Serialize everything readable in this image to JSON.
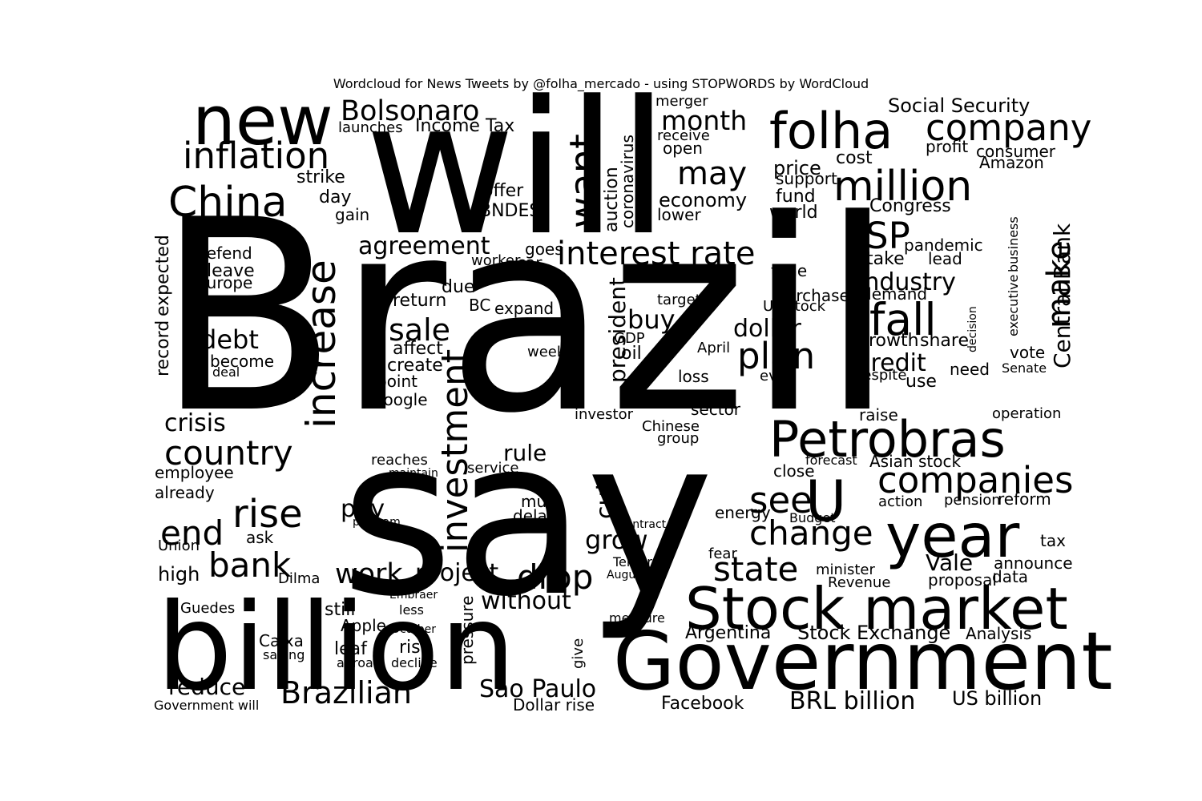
{
  "title": "Wordcloud for News Tweets by @folha_mercado - using STOPWORDS by WordCloud",
  "chart_data": {
    "type": "wordcloud",
    "title": "Wordcloud for News Tweets by @folha_mercado - using STOPWORDS by WordCloud",
    "colors": {
      "background": "#ffffff",
      "text": "#000000"
    },
    "words": [
      {
        "text": "Brazil",
        "weight": 1.0
      },
      {
        "text": "say",
        "weight": 0.82
      },
      {
        "text": "will",
        "weight": 0.7
      },
      {
        "text": "billion",
        "weight": 0.42
      },
      {
        "text": "Government",
        "weight": 0.34
      },
      {
        "text": "Stock market",
        "weight": 0.27
      },
      {
        "text": "new",
        "weight": 0.32
      },
      {
        "text": "year",
        "weight": 0.29
      },
      {
        "text": "folha",
        "weight": 0.23
      },
      {
        "text": "Petrobras",
        "weight": 0.24
      },
      {
        "text": "million",
        "weight": 0.2
      },
      {
        "text": "companies",
        "weight": 0.18
      },
      {
        "text": "company",
        "weight": 0.18
      },
      {
        "text": "China",
        "weight": 0.18
      },
      {
        "text": "increase",
        "weight": 0.17
      },
      {
        "text": "investment",
        "weight": 0.17
      },
      {
        "text": "want",
        "weight": 0.17
      },
      {
        "text": "see",
        "weight": 0.17
      },
      {
        "text": "U",
        "weight": 0.18
      },
      {
        "text": "inflation",
        "weight": 0.15
      },
      {
        "text": "Bolsonaro",
        "weight": 0.14
      },
      {
        "text": "interest rate",
        "weight": 0.15
      },
      {
        "text": "fall",
        "weight": 0.17
      },
      {
        "text": "make",
        "weight": 0.17
      },
      {
        "text": "plan",
        "weight": 0.15
      },
      {
        "text": "SP",
        "weight": 0.15
      },
      {
        "text": "may",
        "weight": 0.14
      },
      {
        "text": "month",
        "weight": 0.13
      },
      {
        "text": "sale",
        "weight": 0.13
      },
      {
        "text": "rise",
        "weight": 0.16
      },
      {
        "text": "end",
        "weight": 0.15
      },
      {
        "text": "bank",
        "weight": 0.15
      },
      {
        "text": "country",
        "weight": 0.15
      },
      {
        "text": "Brazilian",
        "weight": 0.15
      },
      {
        "text": "drop",
        "weight": 0.15
      },
      {
        "text": "change",
        "weight": 0.15
      },
      {
        "text": "state",
        "weight": 0.15
      },
      {
        "text": "work",
        "weight": 0.13
      },
      {
        "text": "project",
        "weight": 0.12
      },
      {
        "text": "agreement",
        "weight": 0.12
      },
      {
        "text": "industry",
        "weight": 0.12
      },
      {
        "text": "credit",
        "weight": 0.12
      },
      {
        "text": "dollar",
        "weight": 0.12
      },
      {
        "text": "debt",
        "weight": 0.12
      },
      {
        "text": "crisis",
        "weight": 0.11
      },
      {
        "text": "pay",
        "weight": 0.12
      },
      {
        "text": "rule",
        "weight": 0.1
      },
      {
        "text": "grow",
        "weight": 0.12
      },
      {
        "text": "cut",
        "weight": 0.11
      },
      {
        "text": "buy",
        "weight": 0.11
      },
      {
        "text": "president",
        "weight": 0.11
      },
      {
        "text": "without",
        "weight": 0.11
      },
      {
        "text": "São Paulo",
        "weight": 0.12
      },
      {
        "text": "Vale",
        "weight": 0.12
      },
      {
        "text": "Central Bank",
        "weight": 0.11
      },
      {
        "text": "BRL billion",
        "weight": 0.12
      },
      {
        "text": "US billion",
        "weight": 0.1
      },
      {
        "text": "Stock Exchange",
        "weight": 0.1
      },
      {
        "text": "Social Security",
        "weight": 0.09
      },
      {
        "text": "economy",
        "weight": 0.09
      },
      {
        "text": "Income Tax",
        "weight": 0.08
      },
      {
        "text": "launches",
        "weight": 0.07
      },
      {
        "text": "strike",
        "weight": 0.08
      },
      {
        "text": "offer",
        "weight": 0.08
      },
      {
        "text": "BNDES",
        "weight": 0.08
      },
      {
        "text": "auction",
        "weight": 0.08
      },
      {
        "text": "coronavirus",
        "weight": 0.07
      },
      {
        "text": "price",
        "weight": 0.09
      },
      {
        "text": "fund",
        "weight": 0.08
      },
      {
        "text": "world",
        "weight": 0.08
      },
      {
        "text": "Congress",
        "weight": 0.08
      },
      {
        "text": "profit",
        "weight": 0.08
      },
      {
        "text": "consumer",
        "weight": 0.08
      },
      {
        "text": "Amazon",
        "weight": 0.08
      },
      {
        "text": "cost",
        "weight": 0.08
      },
      {
        "text": "support",
        "weight": 0.08
      },
      {
        "text": "lower",
        "weight": 0.08
      },
      {
        "text": "open",
        "weight": 0.08
      },
      {
        "text": "receive",
        "weight": 0.07
      },
      {
        "text": "merger",
        "weight": 0.07
      },
      {
        "text": "take",
        "weight": 0.09
      },
      {
        "text": "lead",
        "weight": 0.08
      },
      {
        "text": "pandemic",
        "weight": 0.08
      },
      {
        "text": "demand",
        "weight": 0.08
      },
      {
        "text": "growth",
        "weight": 0.09
      },
      {
        "text": "share",
        "weight": 0.09
      },
      {
        "text": "use",
        "weight": 0.08
      },
      {
        "text": "need",
        "weight": 0.08
      },
      {
        "text": "vote",
        "weight": 0.08
      },
      {
        "text": "Senate",
        "weight": 0.07
      },
      {
        "text": "executive",
        "weight": 0.07
      },
      {
        "text": "business",
        "weight": 0.07
      },
      {
        "text": "decision",
        "weight": 0.06
      },
      {
        "text": "Europe",
        "weight": 0.08
      },
      {
        "text": "leave",
        "weight": 0.08
      },
      {
        "text": "defend",
        "weight": 0.07
      },
      {
        "text": "become",
        "weight": 0.08
      },
      {
        "text": "deal",
        "weight": 0.07
      },
      {
        "text": "record",
        "weight": 0.08
      },
      {
        "text": "expected",
        "weight": 0.08
      },
      {
        "text": "gain",
        "weight": 0.08
      },
      {
        "text": "day",
        "weight": 0.08
      },
      {
        "text": "return",
        "weight": 0.08
      },
      {
        "text": "BC",
        "weight": 0.08
      },
      {
        "text": "expand",
        "weight": 0.08
      },
      {
        "text": "affect",
        "weight": 0.08
      },
      {
        "text": "create",
        "weight": 0.08
      },
      {
        "text": "point",
        "weight": 0.08
      },
      {
        "text": "Google",
        "weight": 0.08
      },
      {
        "text": "due",
        "weight": 0.08
      },
      {
        "text": "car",
        "weight": 0.07
      },
      {
        "text": "goes",
        "weight": 0.07
      },
      {
        "text": "worker",
        "weight": 0.07
      },
      {
        "text": "week",
        "weight": 0.07
      },
      {
        "text": "oil",
        "weight": 0.08
      },
      {
        "text": "GDP",
        "weight": 0.07
      },
      {
        "text": "target",
        "weight": 0.07
      },
      {
        "text": "April",
        "weight": 0.07
      },
      {
        "text": "loss",
        "weight": 0.07
      },
      {
        "text": "sector",
        "weight": 0.08
      },
      {
        "text": "investor",
        "weight": 0.07
      },
      {
        "text": "purchase",
        "weight": 0.08
      },
      {
        "text": "US stock",
        "weight": 0.07
      },
      {
        "text": "time",
        "weight": 0.08
      },
      {
        "text": "even",
        "weight": 0.08
      },
      {
        "text": "despite",
        "weight": 0.07
      },
      {
        "text": "raise",
        "weight": 0.08
      },
      {
        "text": "operation",
        "weight": 0.07
      },
      {
        "text": "Asian stock",
        "weight": 0.08
      },
      {
        "text": "pension",
        "weight": 0.07
      },
      {
        "text": "reform",
        "weight": 0.07
      },
      {
        "text": "action",
        "weight": 0.07
      },
      {
        "text": "tax",
        "weight": 0.08
      },
      {
        "text": "announce",
        "weight": 0.08
      },
      {
        "text": "proposal",
        "weight": 0.08
      },
      {
        "text": "data",
        "weight": 0.08
      },
      {
        "text": "Revenue",
        "weight": 0.08
      },
      {
        "text": "minister",
        "weight": 0.08
      },
      {
        "text": "Analysis",
        "weight": 0.07
      },
      {
        "text": "Argentina",
        "weight": 0.08
      },
      {
        "text": "Facebook",
        "weight": 0.08
      },
      {
        "text": "Dollar rise",
        "weight": 0.07
      },
      {
        "text": "Chinese",
        "weight": 0.07
      },
      {
        "text": "group",
        "weight": 0.07
      },
      {
        "text": "close",
        "weight": 0.08
      },
      {
        "text": "forecast",
        "weight": 0.07
      },
      {
        "text": "energy",
        "weight": 0.08
      },
      {
        "text": "fear",
        "weight": 0.08
      },
      {
        "text": "Budget",
        "weight": 0.07
      },
      {
        "text": "employee",
        "weight": 0.08
      },
      {
        "text": "already",
        "weight": 0.08
      },
      {
        "text": "ask",
        "weight": 0.08
      },
      {
        "text": "high",
        "weight": 0.08
      },
      {
        "text": "Union",
        "weight": 0.07
      },
      {
        "text": "Dilma",
        "weight": 0.07
      },
      {
        "text": "Guedes",
        "weight": 0.07
      },
      {
        "text": "reduce",
        "weight": 0.09
      },
      {
        "text": "Government will",
        "weight": 0.06
      },
      {
        "text": "still",
        "weight": 0.08
      },
      {
        "text": "Apple",
        "weight": 0.07
      },
      {
        "text": "leaf",
        "weight": 0.08
      },
      {
        "text": "abroad",
        "weight": 0.07
      },
      {
        "text": "risk",
        "weight": 0.08
      },
      {
        "text": "decline",
        "weight": 0.07
      },
      {
        "text": "less",
        "weight": 0.07
      },
      {
        "text": "Caixa",
        "weight": 0.07
      },
      {
        "text": "saving",
        "weight": 0.07
      },
      {
        "text": "pressure",
        "weight": 0.08
      },
      {
        "text": "give",
        "weight": 0.07
      },
      {
        "text": "must",
        "weight": 0.07
      },
      {
        "text": "delay",
        "weight": 0.07
      },
      {
        "text": "service",
        "weight": 0.07
      },
      {
        "text": "reaches",
        "weight": 0.07
      },
      {
        "text": "maintain",
        "weight": 0.06
      },
      {
        "text": "program",
        "weight": 0.06
      },
      {
        "text": "measure",
        "weight": 0.07
      },
      {
        "text": "August",
        "weight": 0.06
      },
      {
        "text": "Temer",
        "weight": 0.07
      },
      {
        "text": "contract",
        "weight": 0.07
      },
      {
        "text": "Embraer",
        "weight": 0.06
      },
      {
        "text": "October",
        "weight": 0.06
      }
    ]
  }
}
